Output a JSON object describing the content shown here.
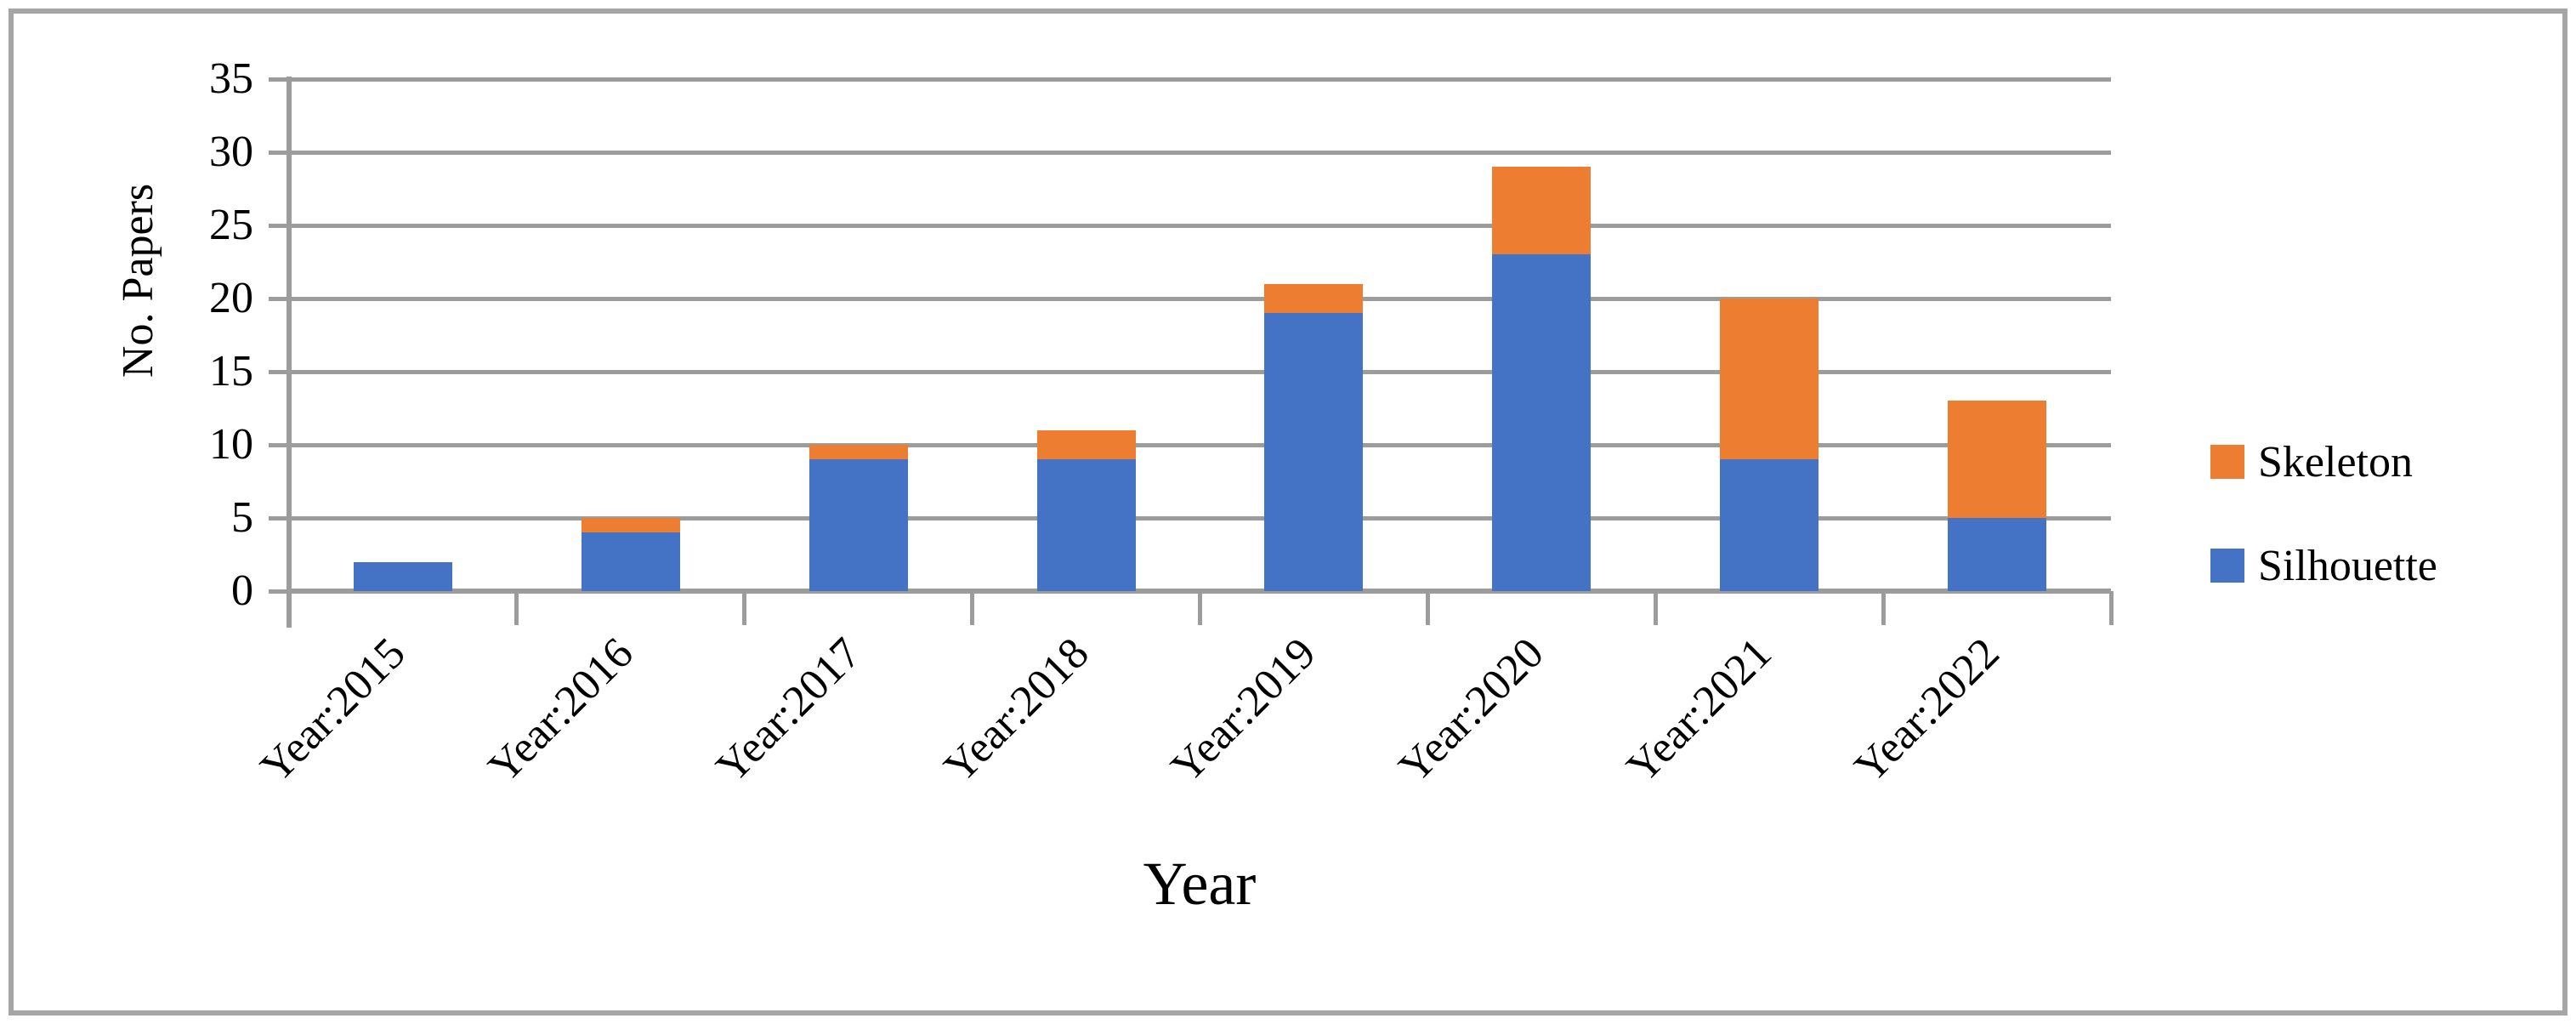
{
  "figure": {
    "border_color": "#A6A6A6",
    "background": "#FFFFFF"
  },
  "chart_data": {
    "type": "bar",
    "stacked": true,
    "title": "",
    "xlabel": "Year",
    "ylabel": "No. Papers",
    "categories": [
      "Year:2015",
      "Year:2016",
      "Year:2017",
      "Year:2018",
      "Year:2019",
      "Year:2020",
      "Year:2021",
      "Year:2022"
    ],
    "series": [
      {
        "name": "Silhouette",
        "color": "#4472C4",
        "values": [
          2,
          4,
          9,
          9,
          19,
          23,
          9,
          5
        ]
      },
      {
        "name": "Skeleton",
        "color": "#ED7D31",
        "values": [
          0,
          1,
          1,
          2,
          2,
          6,
          11,
          8
        ]
      }
    ],
    "stacked_totals": [
      2,
      5,
      10,
      11,
      21,
      29,
      20,
      13
    ],
    "ylim": [
      0,
      35
    ],
    "yticks": [
      0,
      5,
      10,
      15,
      20,
      25,
      30,
      35
    ],
    "grid": true,
    "legend_position": "right",
    "legend_order_top_to_bottom": [
      "Skeleton",
      "Silhouette"
    ],
    "axis_color": "#9C9C9C",
    "text_color": "#000000"
  }
}
